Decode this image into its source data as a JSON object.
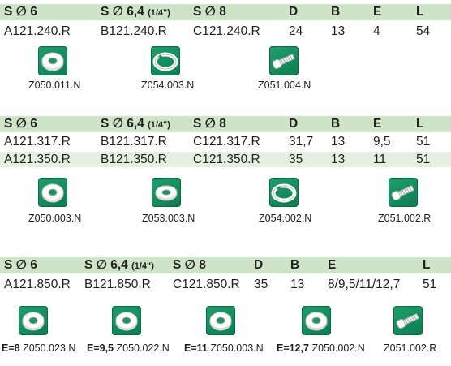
{
  "sections": [
    {
      "headers": {
        "s1": "S ∅ 6",
        "s2_main": "S ∅ 6,4",
        "s2_sub": "(1/4\")",
        "s3": "S ∅ 8",
        "d": "D",
        "b": "B",
        "e": "E",
        "l": "L"
      },
      "rows": [
        {
          "c1": "A121.240.R",
          "c2": "B121.240.R",
          "c3": "C121.240.R",
          "d": "24",
          "b": "13",
          "e": "4",
          "l": "54"
        }
      ],
      "parts": [
        {
          "icon": "o-ring-icon",
          "code": "Z050.011.N"
        },
        {
          "icon": "spring-washer-icon",
          "code": "Z054.003.N"
        },
        {
          "icon": "screw-icon",
          "code": "Z051.004.N"
        }
      ]
    },
    {
      "headers": {
        "s1": "S ∅ 6",
        "s2_main": "S ∅ 6,4",
        "s2_sub": "(1/4\")",
        "s3": "S ∅ 8",
        "d": "D",
        "b": "B",
        "e": "E",
        "l": "L"
      },
      "rows": [
        {
          "c1": "A121.317.R",
          "c2": "B121.317.R",
          "c3": "C121.317.R",
          "d": "31,7",
          "b": "13",
          "e": "9,5",
          "l": "51"
        },
        {
          "c1": "A121.350.R",
          "c2": "B121.350.R",
          "c3": "C121.350.R",
          "d": "35",
          "b": "13",
          "e": "11",
          "l": "51"
        }
      ],
      "parts": [
        {
          "icon": "o-ring-icon",
          "code": "Z050.003.N"
        },
        {
          "icon": "flat-washer-icon",
          "code": "Z053.003.N"
        },
        {
          "icon": "spring-washer-icon",
          "code": "Z054.002.N"
        },
        {
          "icon": "screw-icon",
          "code": "Z051.002.R"
        }
      ]
    },
    {
      "headers": {
        "s1": "S ∅ 6",
        "s2_main": "S ∅ 6,4",
        "s2_sub": "(1/4\")",
        "s3": "S ∅ 8",
        "d": "D",
        "b": "B",
        "e": "E",
        "l": "L"
      },
      "rows": [
        {
          "c1": "A121.850.R",
          "c2": "B121.850.R",
          "c3": "C121.850.R",
          "d": "35",
          "b": "13",
          "e": "8/9,5/11/12,7",
          "l": "51"
        }
      ],
      "parts": [
        {
          "icon": "o-ring-icon",
          "prefix": "E=8",
          "code": "Z050.023.N"
        },
        {
          "icon": "o-ring-icon",
          "prefix": "E=9,5",
          "code": "Z050.022.N"
        },
        {
          "icon": "o-ring-icon",
          "prefix": "E=11",
          "code": "Z050.003.N"
        },
        {
          "icon": "o-ring-icon",
          "prefix": "E=12,7",
          "code": "Z050.002.N"
        },
        {
          "icon": "screw-icon",
          "code": "Z051.002.R"
        }
      ]
    }
  ],
  "colors": {
    "header_bg": "#cfe3c6",
    "alt_row_bg": "#e6f0e0",
    "icon_green": "#1a9463"
  }
}
